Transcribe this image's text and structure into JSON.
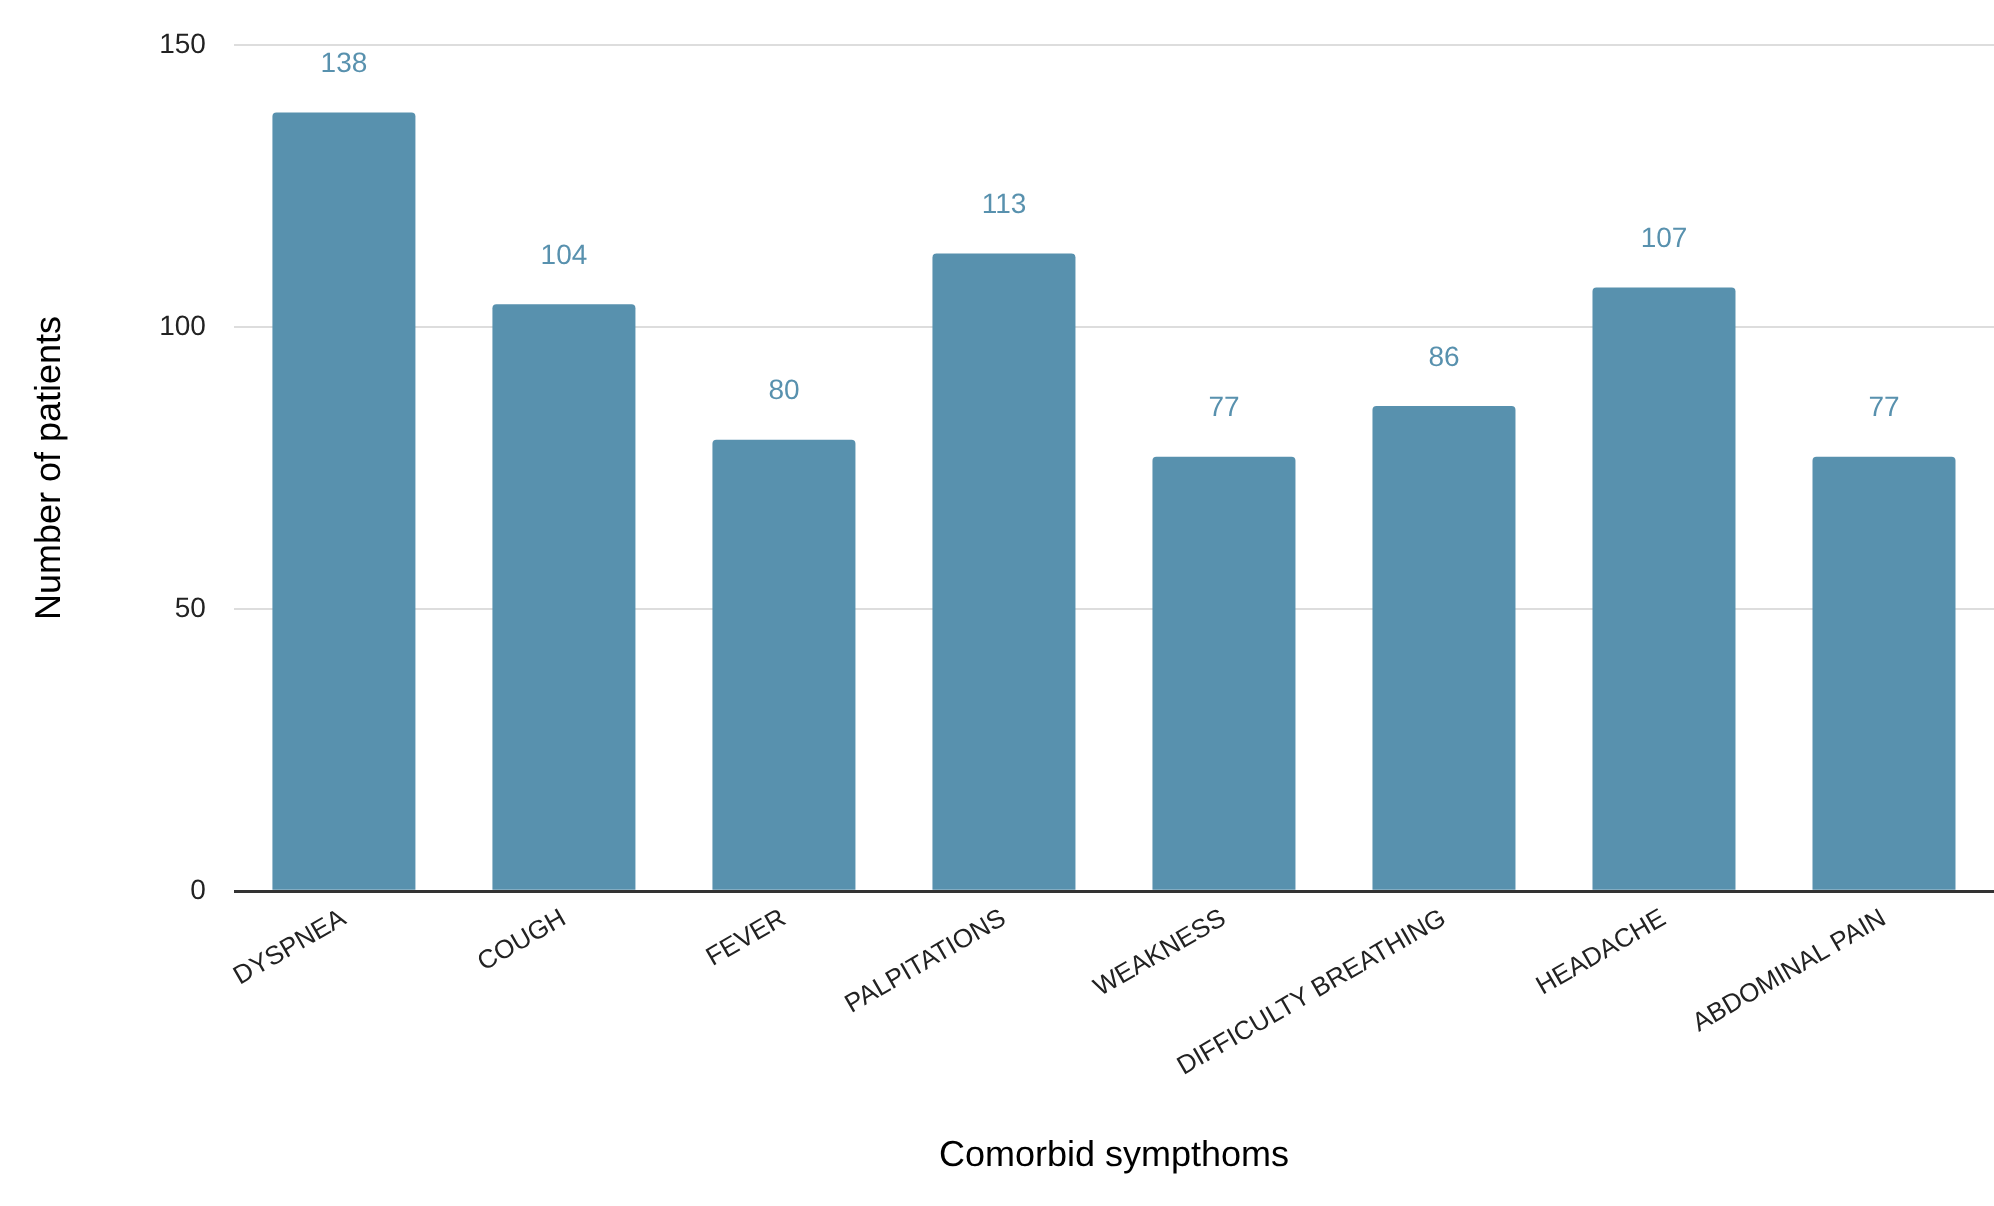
{
  "chart_data": {
    "type": "bar",
    "xlabel": "Comorbid sympthoms",
    "ylabel": "Number of patients",
    "categories": [
      "DYSPNEA",
      "COUGH",
      "FEVER",
      "PALPITATIONS",
      "WEAKNESS",
      "DIFFICULTY BREATHING",
      "HEADACHE",
      "ABDOMINAL PAIN"
    ],
    "values": [
      138,
      104,
      80,
      113,
      77,
      86,
      107,
      77
    ],
    "color": "#5891ae",
    "ylim": [
      0,
      150
    ],
    "yticks": [
      0,
      50,
      100,
      150
    ],
    "grid": "y",
    "data_labels": true
  }
}
